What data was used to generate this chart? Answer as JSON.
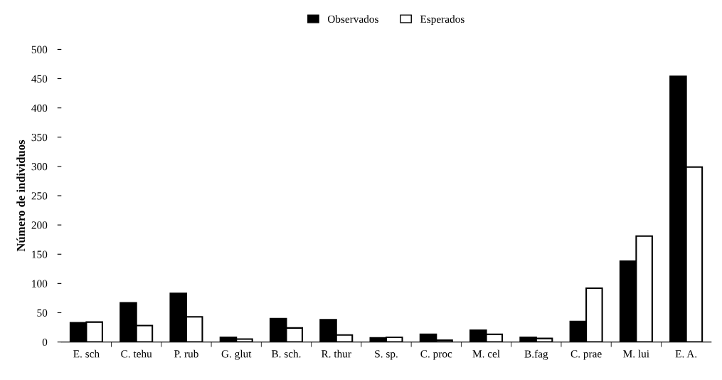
{
  "chart_data": {
    "type": "bar",
    "ylabel": "Número de individuos",
    "categories": [
      "E. sch",
      "C. tehu",
      "P. rub",
      "G. glut",
      "B. sch.",
      "R. thur",
      "S. sp.",
      "C. proc",
      "M. cel",
      "B.fag",
      "C. prae",
      "M. lui",
      "E. A."
    ],
    "series": [
      {
        "name": "Observados",
        "color": "#000000",
        "values": [
          33,
          67,
          83,
          8,
          40,
          38,
          7,
          13,
          20,
          8,
          35,
          138,
          454
        ]
      },
      {
        "name": "Esperados",
        "color": "#ffffff",
        "values": [
          34,
          28,
          43,
          5,
          24,
          12,
          8,
          3,
          13,
          6,
          92,
          181,
          299
        ]
      }
    ],
    "ylim": [
      0,
      500
    ],
    "yticks": [
      0,
      50,
      100,
      150,
      200,
      250,
      300,
      350,
      400,
      450,
      500
    ],
    "grid": false,
    "legend": "top"
  }
}
